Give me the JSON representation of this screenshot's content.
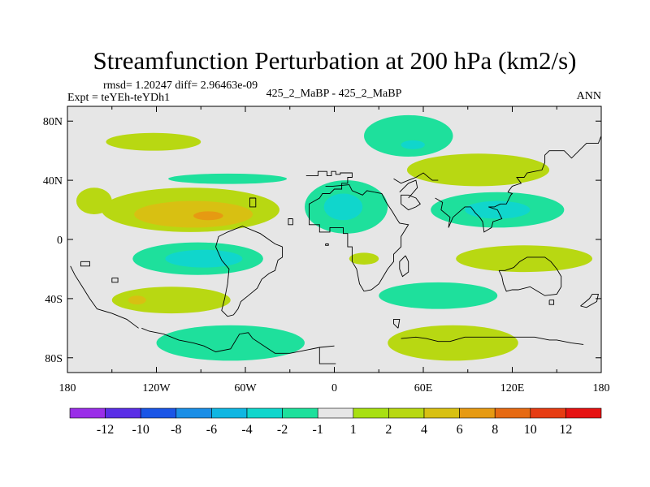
{
  "chart_data": {
    "type": "heatmap",
    "title": "Streamfunction Perturbation at 200 hPa (km2/s)",
    "stats": "rmsd= 1.20247  diff= 2.96463e-09",
    "experiment": "Expt = teYEh-teYDh1",
    "case": "425_2_MaBP - 425_2_MaBP",
    "season": "ANN",
    "xlim": [
      -180,
      180
    ],
    "ylim": [
      -90,
      90
    ],
    "x_ticks": [
      {
        "value": -180,
        "label": "180"
      },
      {
        "value": -120,
        "label": "120W"
      },
      {
        "value": -60,
        "label": "60W"
      },
      {
        "value": 0,
        "label": "0"
      },
      {
        "value": 60,
        "label": "60E"
      },
      {
        "value": 120,
        "label": "120E"
      },
      {
        "value": 180,
        "label": "180"
      }
    ],
    "y_ticks": [
      {
        "value": 80,
        "label": "80N"
      },
      {
        "value": 40,
        "label": "40N"
      },
      {
        "value": 0,
        "label": "0"
      },
      {
        "value": -40,
        "label": "40S"
      },
      {
        "value": -80,
        "label": "80S"
      }
    ],
    "colorbar": {
      "levels": [
        -12,
        -10,
        -8,
        -6,
        -4,
        -2,
        -1,
        1,
        2,
        4,
        6,
        8,
        10,
        12
      ],
      "labels": [
        "-12",
        "-10",
        "-8",
        "-6",
        "-4",
        "-2",
        "-1",
        "1",
        "2",
        "4",
        "6",
        "8",
        "10",
        "12"
      ],
      "colors": [
        "#9a2ee8",
        "#5a2ee6",
        "#1a55e6",
        "#1a8ee6",
        "#10b6e2",
        "#10d6cc",
        "#1ee09c",
        "#e6e6e6",
        "#a8e012",
        "#b8d812",
        "#d8c012",
        "#e69a12",
        "#e66a12",
        "#e63c12",
        "#e61212"
      ]
    },
    "features": [
      {
        "name": "pos-pacific-north",
        "lon": -122,
        "lat": 66,
        "rlon": 32,
        "rlat": 6,
        "level": 2
      },
      {
        "name": "pos-pacific-20n",
        "lon": -97,
        "lat": 20,
        "rlon": 60,
        "rlat": 15,
        "level": 2
      },
      {
        "name": "pos-pacific-20n-inner",
        "lon": -95,
        "lat": 17,
        "rlon": 40,
        "rlat": 9,
        "level": 4
      },
      {
        "name": "pos-pacific-20n-core",
        "lon": -85,
        "lat": 16,
        "rlon": 10,
        "rlat": 3,
        "level": 6
      },
      {
        "name": "pos-pacific-20n-west",
        "lon": -162,
        "lat": 26,
        "rlon": 12,
        "rlat": 9,
        "level": 2
      },
      {
        "name": "neg-pacific-eq",
        "lon": -92,
        "lat": -13,
        "rlon": 44,
        "rlat": 11,
        "level": -2
      },
      {
        "name": "neg-pacific-eq-core",
        "lon": -88,
        "lat": -13,
        "rlon": 26,
        "rlat": 6,
        "level": -4
      },
      {
        "name": "pos-spacific-40s",
        "lon": -110,
        "lat": -41,
        "rlon": 40,
        "rlat": 9,
        "level": 2
      },
      {
        "name": "pos-spacific-40s-core",
        "lon": -133,
        "lat": -41,
        "rlon": 6,
        "rlat": 3,
        "level": 4
      },
      {
        "name": "neg-southern-70s",
        "lon": -70,
        "lat": -70,
        "rlon": 50,
        "rlat": 12,
        "level": -2
      },
      {
        "name": "neg-north-atl-40n",
        "lon": -72,
        "lat": 41,
        "rlon": 40,
        "rlat": 3.5,
        "level": -2
      },
      {
        "name": "neg-europe-20n",
        "lon": 8,
        "lat": 22,
        "rlon": 28,
        "rlat": 18,
        "level": -2
      },
      {
        "name": "neg-europe-20n-core",
        "lon": 6,
        "lat": 22,
        "rlon": 13,
        "rlat": 9,
        "level": -4
      },
      {
        "name": "neg-arctic-70n",
        "lon": 50,
        "lat": 70,
        "rlon": 30,
        "rlat": 14,
        "level": -2
      },
      {
        "name": "neg-arctic-70n-core",
        "lon": 53,
        "lat": 64,
        "rlon": 8,
        "rlat": 3,
        "level": -4
      },
      {
        "name": "pos-eurasia-45n",
        "lon": 97,
        "lat": 47,
        "rlon": 48,
        "rlat": 11,
        "level": 2
      },
      {
        "name": "neg-asia-20n",
        "lon": 110,
        "lat": 20,
        "rlon": 45,
        "rlat": 12,
        "level": -2
      },
      {
        "name": "neg-asia-20n-core",
        "lon": 110,
        "lat": 20,
        "rlon": 22,
        "rlat": 6,
        "level": -4
      },
      {
        "name": "pos-indian-15s",
        "lon": 128,
        "lat": -13,
        "rlon": 46,
        "rlat": 9,
        "level": 2
      },
      {
        "name": "neg-indian-40s",
        "lon": 70,
        "lat": -38,
        "rlon": 40,
        "rlat": 9,
        "level": -2
      },
      {
        "name": "pos-southern-70s",
        "lon": 80,
        "lat": -70,
        "rlon": 44,
        "rlat": 12,
        "level": 2
      },
      {
        "name": "pos-atlantic-15s",
        "lon": 20,
        "lat": -13,
        "rlon": 10,
        "rlat": 4,
        "level": 2
      }
    ],
    "coastlines": [
      [
        [
          -19,
          43
        ],
        [
          -11,
          43
        ],
        [
          -11,
          46
        ],
        [
          -5,
          46
        ],
        [
          -5,
          43
        ],
        [
          -2,
          43
        ],
        [
          -2,
          46
        ],
        [
          1,
          46
        ],
        [
          1,
          44
        ],
        [
          4,
          44
        ],
        [
          4,
          45
        ],
        [
          12,
          45
        ],
        [
          12,
          42
        ],
        [
          9,
          42
        ],
        [
          9,
          38
        ],
        [
          5,
          38
        ],
        [
          5,
          34
        ],
        [
          0,
          34
        ],
        [
          -3,
          31
        ],
        [
          -8,
          31
        ],
        [
          -10,
          28
        ],
        [
          -17,
          24
        ],
        [
          -17,
          15
        ],
        [
          -17,
          10
        ],
        [
          -10,
          10
        ],
        [
          -10,
          5
        ],
        [
          -3,
          5
        ],
        [
          -3,
          8
        ],
        [
          6,
          8
        ],
        [
          6,
          4
        ],
        [
          9,
          4
        ],
        [
          9,
          -5
        ],
        [
          12,
          -5
        ],
        [
          12,
          -15
        ],
        [
          15,
          -20
        ],
        [
          17,
          -30
        ],
        [
          20,
          -35
        ],
        [
          25,
          -34
        ],
        [
          30,
          -30
        ],
        [
          33,
          -25
        ],
        [
          36,
          -20
        ],
        [
          40,
          -15
        ],
        [
          40,
          -10
        ],
        [
          45,
          -5
        ],
        [
          45,
          2
        ],
        [
          50,
          10
        ],
        [
          44,
          11
        ],
        [
          42,
          14
        ],
        [
          39,
          19
        ],
        [
          35,
          25
        ],
        [
          32,
          31
        ],
        [
          27,
          32
        ]
      ],
      [
        [
          27,
          32
        ],
        [
          22,
          33
        ],
        [
          19,
          30
        ],
        [
          12,
          33
        ],
        [
          10,
          37
        ],
        [
          -1,
          36
        ],
        [
          -6,
          36
        ]
      ],
      [
        [
          -53,
          28
        ],
        [
          -57,
          28
        ],
        [
          -57,
          22
        ],
        [
          -53,
          22
        ],
        [
          -53,
          28
        ]
      ],
      [
        [
          -28,
          14
        ],
        [
          -31,
          14
        ],
        [
          -31,
          10
        ],
        [
          -28,
          10
        ],
        [
          -28,
          14
        ]
      ],
      [
        [
          -35,
          -5
        ],
        [
          -35,
          -12
        ],
        [
          -38,
          -14
        ],
        [
          -40,
          -21
        ],
        [
          -44,
          -23
        ],
        [
          -49,
          -27
        ],
        [
          -52,
          -33
        ],
        [
          -58,
          -38
        ],
        [
          -63,
          -42
        ],
        [
          -65,
          -47
        ],
        [
          -68,
          -51
        ],
        [
          -72,
          -52
        ],
        [
          -76,
          -48
        ],
        [
          -74,
          -40
        ],
        [
          -72,
          -30
        ],
        [
          -71,
          -20
        ],
        [
          -76,
          -14
        ],
        [
          -80,
          -5
        ],
        [
          -78,
          2
        ],
        [
          -72,
          5
        ],
        [
          -62,
          9
        ],
        [
          -50,
          4
        ],
        [
          -40,
          -3
        ],
        [
          -35,
          -5
        ]
      ],
      [
        [
          -171,
          -15
        ],
        [
          -165,
          -15
        ],
        [
          -165,
          -18
        ],
        [
          -171,
          -18
        ],
        [
          -171,
          -15
        ]
      ],
      [
        [
          -150,
          -26
        ],
        [
          -146,
          -26
        ],
        [
          -146,
          -29
        ],
        [
          -150,
          -29
        ],
        [
          -150,
          -26
        ]
      ],
      [
        [
          -178,
          -18
        ],
        [
          -175,
          -24
        ],
        [
          -170,
          -32
        ],
        [
          -165,
          -40
        ],
        [
          -160,
          -47
        ],
        [
          -150,
          -50
        ],
        [
          -140,
          -54
        ],
        [
          -132,
          -60
        ]
      ],
      [
        [
          -130,
          -60
        ],
        [
          -125,
          -62
        ],
        [
          -115,
          -64
        ],
        [
          -105,
          -68
        ],
        [
          -95,
          -70
        ],
        [
          -88,
          -72
        ],
        [
          -80,
          -76
        ],
        [
          -70,
          -74
        ],
        [
          -64,
          -64
        ],
        [
          -58,
          -63
        ],
        [
          -55,
          -67
        ],
        [
          -40,
          -77
        ],
        [
          -30,
          -77
        ],
        [
          -20,
          -75
        ],
        [
          -10,
          -73
        ],
        [
          0,
          -72
        ]
      ],
      [
        [
          45,
          -67
        ],
        [
          55,
          -66
        ],
        [
          62,
          -67
        ],
        [
          70,
          -69
        ],
        [
          78,
          -69
        ],
        [
          88,
          -66
        ],
        [
          95,
          -66
        ],
        [
          105,
          -66
        ],
        [
          118,
          -66
        ],
        [
          126,
          -66
        ],
        [
          135,
          -66
        ],
        [
          145,
          -68
        ],
        [
          150,
          -68
        ],
        [
          160,
          -70
        ],
        [
          168,
          -71
        ]
      ],
      [
        [
          48,
          -11
        ],
        [
          50,
          -15
        ],
        [
          50,
          -22
        ],
        [
          46,
          -25
        ],
        [
          44,
          -20
        ],
        [
          44,
          -15
        ],
        [
          48,
          -11
        ]
      ],
      [
        [
          43,
          -60
        ],
        [
          40,
          -57
        ],
        [
          40,
          -54
        ],
        [
          44,
          -54
        ],
        [
          43,
          -60
        ]
      ],
      [
        [
          45,
          24
        ],
        [
          45,
          30
        ],
        [
          50,
          30
        ],
        [
          55,
          28
        ],
        [
          58,
          24
        ],
        [
          55,
          22
        ],
        [
          50,
          20
        ],
        [
          45,
          24
        ]
      ],
      [
        [
          44,
          32
        ],
        [
          50,
          38
        ],
        [
          55,
          40
        ],
        [
          56,
          35
        ],
        [
          50,
          28
        ]
      ],
      [
        [
          40,
          41
        ],
        [
          45,
          38
        ],
        [
          50,
          40
        ],
        [
          55,
          42
        ],
        [
          60,
          45
        ],
        [
          66,
          40
        ],
        [
          70,
          40
        ]
      ],
      [
        [
          80,
          15
        ],
        [
          77,
          8
        ],
        [
          78,
          15
        ],
        [
          72,
          20
        ],
        [
          73,
          25
        ],
        [
          68,
          28
        ]
      ],
      [
        [
          104,
          22
        ],
        [
          110,
          20
        ],
        [
          113,
          14
        ],
        [
          107,
          12
        ],
        [
          106,
          8
        ],
        [
          101,
          5
        ],
        [
          100,
          12
        ],
        [
          98,
          15
        ],
        [
          95,
          18
        ],
        [
          92,
          22
        ],
        [
          88,
          22
        ],
        [
          80,
          15
        ]
      ],
      [
        [
          117,
          32
        ],
        [
          120,
          36
        ],
        [
          126,
          38
        ],
        [
          123,
          42
        ],
        [
          128,
          42
        ],
        [
          130,
          45
        ],
        [
          140,
          47
        ],
        [
          142,
          52
        ],
        [
          142,
          57
        ],
        [
          145,
          60
        ],
        [
          155,
          60
        ],
        [
          160,
          55
        ],
        [
          165,
          60
        ],
        [
          170,
          65
        ],
        [
          178,
          65
        ],
        [
          180,
          70
        ]
      ],
      [
        [
          104,
          22
        ],
        [
          108,
          22
        ],
        [
          112,
          24
        ],
        [
          116,
          24
        ],
        [
          119,
          30
        ],
        [
          120,
          31
        ],
        [
          117,
          32
        ]
      ],
      [
        [
          111,
          -21
        ],
        [
          113,
          -25
        ],
        [
          114,
          -30
        ],
        [
          116,
          -35
        ],
        [
          120,
          -34
        ],
        [
          124,
          -34
        ],
        [
          132,
          -32
        ],
        [
          137,
          -35
        ],
        [
          142,
          -38
        ],
        [
          150,
          -37
        ],
        [
          153,
          -32
        ],
        [
          153,
          -25
        ],
        [
          150,
          -20
        ],
        [
          146,
          -15
        ],
        [
          142,
          -12
        ],
        [
          136,
          -12
        ],
        [
          130,
          -12
        ],
        [
          125,
          -15
        ],
        [
          121,
          -19
        ],
        [
          115,
          -21
        ],
        [
          111,
          -21
        ]
      ],
      [
        [
          145,
          -41
        ],
        [
          148,
          -41
        ],
        [
          148,
          -44
        ],
        [
          145,
          -44
        ],
        [
          145,
          -41
        ]
      ],
      [
        [
          166,
          -45
        ],
        [
          172,
          -40
        ],
        [
          174,
          -37
        ],
        [
          178,
          -37
        ],
        [
          177,
          -42
        ],
        [
          170,
          -46
        ],
        [
          166,
          -45
        ]
      ],
      [
        [
          -6,
          -3
        ],
        [
          -6,
          -4
        ],
        [
          -4,
          -4
        ],
        [
          -4,
          -3
        ],
        [
          -6,
          -3
        ]
      ],
      [
        [
          -10,
          -73
        ],
        [
          -10,
          -84
        ],
        [
          1,
          -84
        ]
      ]
    ]
  }
}
